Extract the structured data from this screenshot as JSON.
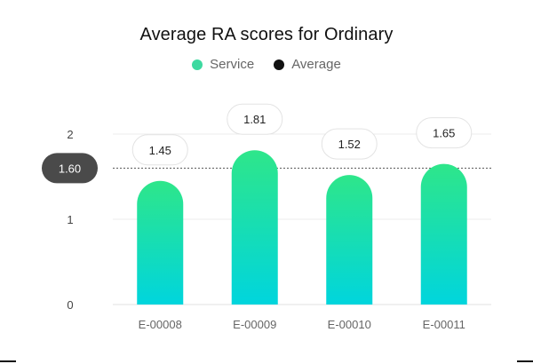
{
  "colors": {
    "bar_top": "#2ee68a",
    "bar_bottom": "#00d5dd",
    "average_line": "#555555",
    "average_badge_bg": "#4a4a4a",
    "average_badge_text": "#ffffff",
    "legend_service": "#3dd9a0",
    "legend_average": "#111111"
  },
  "chart_data": {
    "type": "bar",
    "title": "Average RA scores for Ordinary",
    "categories": [
      "E-00008",
      "E-00009",
      "E-00010",
      "E-00011"
    ],
    "series": [
      {
        "name": "Service",
        "values": [
          1.45,
          1.81,
          1.52,
          1.65
        ]
      }
    ],
    "average": {
      "name": "Average",
      "value": 1.6,
      "label": "1.60"
    },
    "yticks": [
      0,
      1,
      2
    ],
    "ylim": [
      0,
      2
    ],
    "xlabel": "",
    "ylabel": "",
    "grid": true,
    "legend_position": "top"
  }
}
